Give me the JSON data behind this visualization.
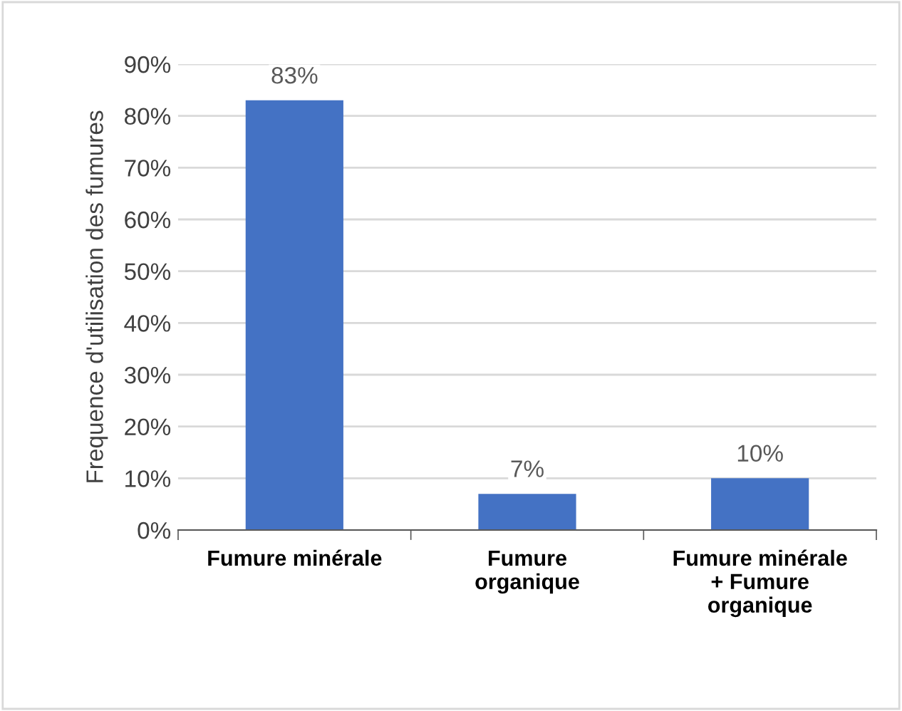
{
  "chart_data": {
    "type": "bar",
    "ylabel": "Frequence d'utilisation des fumures",
    "categories": [
      "Fumure minérale",
      "Fumure\norganique",
      "Fumure minérale\n+ Fumure\norganique"
    ],
    "values": [
      83,
      7,
      10
    ],
    "value_labels": [
      "83%",
      "7%",
      "10%"
    ],
    "color": "#4472c4",
    "ylim": [
      0,
      90
    ],
    "yticks": [
      {
        "value": 0,
        "label": "0%"
      },
      {
        "value": 10,
        "label": "10%"
      },
      {
        "value": 20,
        "label": "20%"
      },
      {
        "value": 30,
        "label": "30%"
      },
      {
        "value": 40,
        "label": "40%"
      },
      {
        "value": 50,
        "label": "50%"
      },
      {
        "value": 60,
        "label": "60%"
      },
      {
        "value": 70,
        "label": "70%"
      },
      {
        "value": 80,
        "label": "80%"
      },
      {
        "value": 90,
        "label": "90%"
      }
    ],
    "grid": "y"
  }
}
